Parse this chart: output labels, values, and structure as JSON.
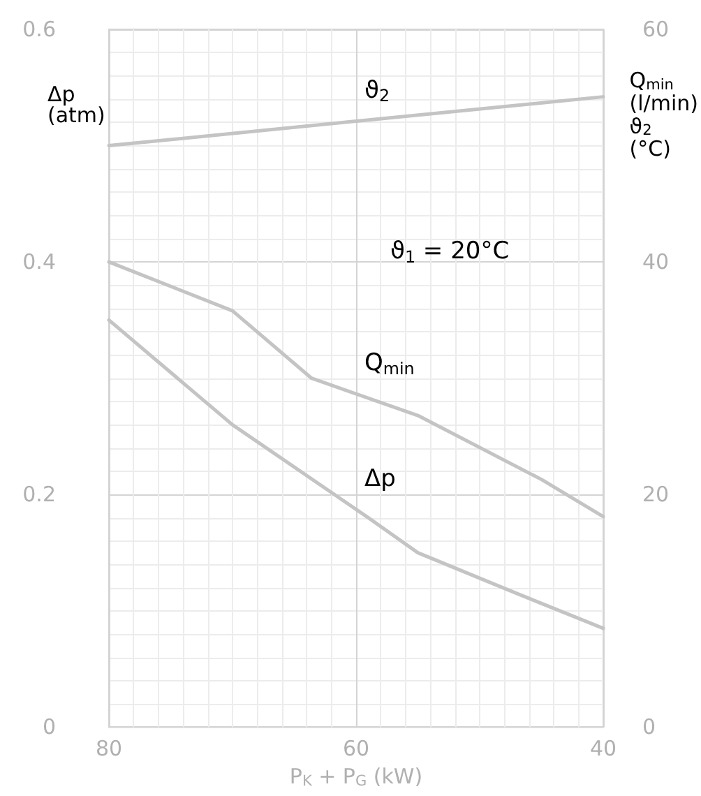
{
  "chart_data": {
    "type": "line",
    "xlabel": "P$_{K}$ + P$_{G}$ (kW)",
    "ylabel": "Δp\n(atm)",
    "y2label": "Q$_{min}$\n(l/min)\nϑ$_{2}$\n(°C)",
    "xlim": [
      80,
      40
    ],
    "xticks": [
      80,
      60,
      40
    ],
    "ylim": [
      0,
      0.6
    ],
    "yticks": [
      0,
      0.2,
      0.4,
      0.6
    ],
    "y2lim": [
      0,
      60
    ],
    "y2ticks": [
      0,
      20,
      40,
      60
    ],
    "grid": true,
    "marker": "none",
    "line_style": "solid",
    "series": [
      {
        "name": "ϑ$_{2}$",
        "color": "#c4c4c4",
        "axis": "y2",
        "x": [
          80,
          40
        ],
        "values": [
          50,
          54.2
        ]
      },
      {
        "name": "Q$_{min}$",
        "color": "#c4c4c4",
        "axis": "y2",
        "x": [
          80,
          70,
          63.6,
          55,
          45,
          40
        ],
        "values": [
          40,
          35.8,
          30,
          26.8,
          21.3,
          18.1
        ]
      },
      {
        "name": "Δp",
        "color": "#c4c4c4",
        "x": [
          80,
          70,
          59,
          55,
          47,
          40
        ],
        "values": [
          0.35,
          0.26,
          0.18,
          0.15,
          0.115,
          0.085
        ]
      }
    ],
    "annotations": [
      "ϑ$_{1}$ = 20°C"
    ]
  }
}
